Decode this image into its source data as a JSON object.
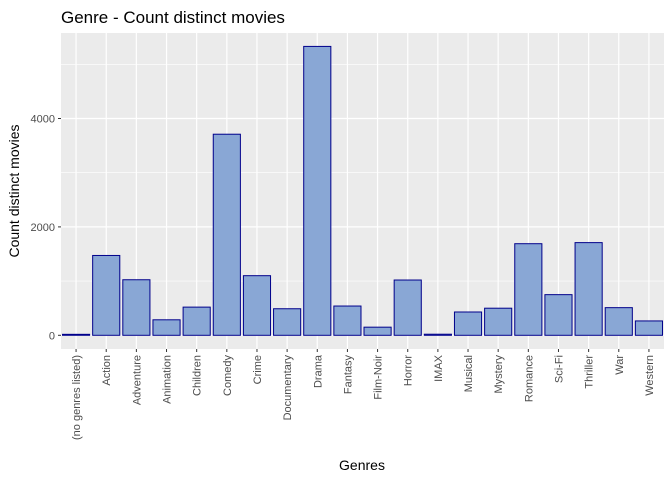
{
  "chart_data": {
    "type": "bar",
    "title": "Genre - Count distinct movies",
    "xlabel": "Genres",
    "ylabel": "Count distinct movies",
    "categories": [
      "(no genres listed)",
      "Action",
      "Adventure",
      "Animation",
      "Children",
      "Comedy",
      "Crime",
      "Documentary",
      "Drama",
      "Fantasy",
      "Film-Noir",
      "Horror",
      "IMAX",
      "Musical",
      "Mystery",
      "Romance",
      "Sci-Fi",
      "Thriller",
      "War",
      "Western"
    ],
    "values": [
      18,
      1473,
      1025,
      286,
      520,
      3710,
      1100,
      490,
      5330,
      540,
      150,
      1020,
      20,
      430,
      500,
      1690,
      750,
      1710,
      510,
      265
    ],
    "ylim": [
      0,
      5600
    ],
    "yticks": [
      "0",
      "2000",
      "4000"
    ],
    "ytick_values": [
      0,
      2000,
      4000
    ],
    "grid": true,
    "colors": {
      "bar_fill": "#89a7d5",
      "bar_stroke": "#00008b",
      "panel_bg": "#ebebeb",
      "grid_major": "#ffffff",
      "tick_text": "#4d4d4d"
    }
  }
}
